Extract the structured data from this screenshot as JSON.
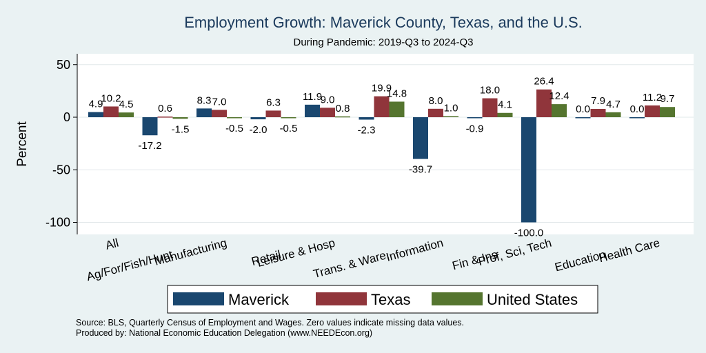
{
  "chart_data": {
    "type": "bar",
    "title": "Employment Growth: Maverick County, Texas, and the U.S.",
    "subtitle": "During Pandemic: 2019-Q3 to 2024-Q3",
    "ylabel": "Percent",
    "xlabel": "",
    "ylim": [
      -110,
      55
    ],
    "yticks": [
      50,
      0,
      -50,
      -100
    ],
    "grid": true,
    "legend_position": "bottom",
    "categories": [
      "All",
      "Ag/For/Fish/Hunt",
      "Manufacturing",
      "Retail",
      "Leisure & Hosp",
      "Trans. & Ware.",
      "Information",
      "Fin & Ins",
      "Prof, Sci, Tech",
      "Education",
      "Health Care"
    ],
    "series": [
      {
        "name": "Maverick",
        "color": "#1a476f",
        "values": [
          4.9,
          -17.2,
          8.3,
          -2.0,
          11.9,
          -2.3,
          -39.7,
          -0.9,
          -100.0,
          0.0,
          0.0
        ]
      },
      {
        "name": "Texas",
        "color": "#90353b",
        "values": [
          10.2,
          0.6,
          7.0,
          6.3,
          9.0,
          19.9,
          8.0,
          18.0,
          26.4,
          7.9,
          11.2
        ]
      },
      {
        "name": "United States",
        "color": "#55752f",
        "values": [
          4.5,
          -1.5,
          -0.5,
          -0.5,
          0.8,
          14.8,
          1.0,
          4.1,
          12.4,
          4.7,
          9.7
        ]
      }
    ],
    "notes": [
      "Source: BLS, Quarterly Census of Employment and Wages. Zero values indicate missing data values.",
      "Produced by: National Economic Education Delegation (www.NEEDEcon.org)"
    ]
  }
}
